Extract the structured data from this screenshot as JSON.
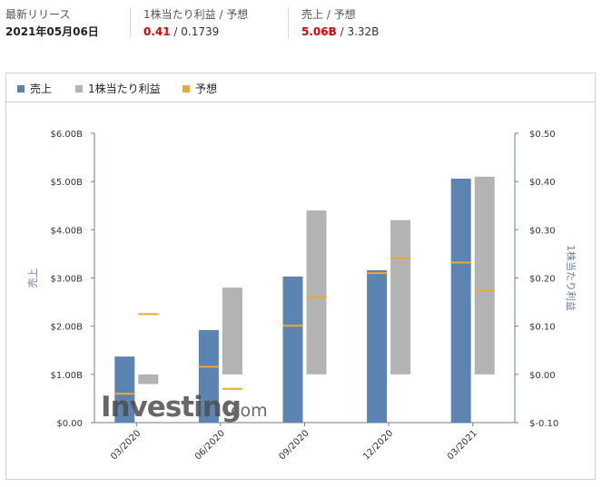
{
  "summary": {
    "release": {
      "label": "最新リリース",
      "value": "2021年05月06日"
    },
    "eps": {
      "label": "1株当たり利益 / 予想",
      "actual": "0.41",
      "separator": " / ",
      "forecast": "0.1739"
    },
    "revenue": {
      "label": "売上 / 予想",
      "actual": "5.06B",
      "separator": " / ",
      "forecast": "3.32B"
    }
  },
  "legend": [
    {
      "label": "売上",
      "color": "#5b84b1"
    },
    {
      "label": "1株当たり利益",
      "color": "#b3b3b3"
    },
    {
      "label": "予想",
      "color": "#f0a732"
    }
  ],
  "watermark": {
    "brand": "Investing",
    "suffix": ".com"
  },
  "chart_data": {
    "type": "bar",
    "categories": [
      "03/2020",
      "06/2020",
      "09/2020",
      "12/2020",
      "03/2021"
    ],
    "series": [
      {
        "name": "売上",
        "axis": "left",
        "color": "#5b84b1",
        "values": [
          1.37,
          1.92,
          3.03,
          3.16,
          5.06
        ]
      },
      {
        "name": "1株当たり利益",
        "axis": "right",
        "color": "#b3b3b3",
        "values": [
          -0.02,
          0.18,
          0.34,
          0.32,
          0.41
        ]
      },
      {
        "name": "予想",
        "axis": "left",
        "kind": "marker",
        "color": "#f0a732",
        "values": [
          0.6,
          1.16,
          2.01,
          3.1,
          3.32
        ]
      },
      {
        "name": "予想",
        "axis": "right",
        "kind": "marker",
        "color": "#f0a732",
        "values": [
          0.125,
          -0.03,
          0.16,
          0.24,
          0.1739
        ]
      }
    ],
    "y_left": {
      "label": "売上",
      "range": [
        0,
        6
      ],
      "ticks": [
        0,
        1,
        2,
        3,
        4,
        5,
        6
      ],
      "tick_labels": [
        "$0.00",
        "$1.00B",
        "$2.00B",
        "$3.00B",
        "$4.00B",
        "$5.00B",
        "$6.00B"
      ]
    },
    "y_right": {
      "label": "1株当たり利益",
      "range": [
        -0.1,
        0.5
      ],
      "ticks": [
        -0.1,
        0,
        0.1,
        0.2,
        0.3,
        0.4,
        0.5
      ],
      "tick_labels": [
        "$-0.10",
        "$0.00",
        "$0.10",
        "$0.20",
        "$0.30",
        "$0.40",
        "$0.50"
      ]
    },
    "grid": false,
    "legend_position": "top-left"
  }
}
